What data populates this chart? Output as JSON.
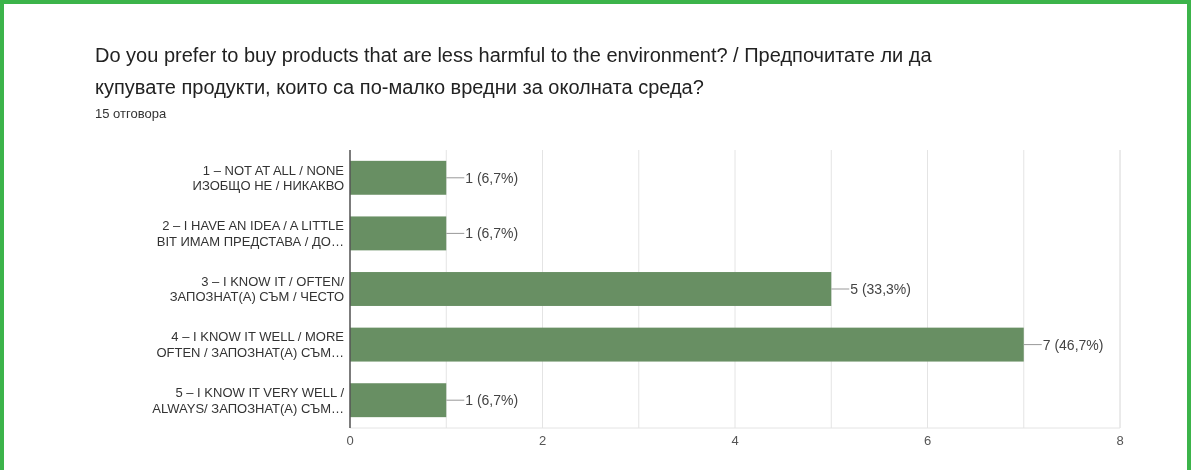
{
  "chart_data": {
    "type": "bar",
    "orientation": "horizontal",
    "title": "Do you prefer to buy products that are less harmful to the environment? / Предпочитате ли да купувате продукти, които са по-малко вредни за околната среда?",
    "subtitle": "15 отговора",
    "categories": [
      "1 – NOT AT ALL / NONE\nИЗОБЩО НЕ / НИКАКВО",
      "2 – I HAVE AN IDEA / A LITTLE\nBIT ИМАМ ПРЕДСТАВА / ДО…",
      "3 – I KNOW IT / OFTEN/\nЗАПОЗНАТ(А) СЪМ / ЧЕСТО",
      "4 – I KNOW IT WELL / MORE\nOFTEN / ЗАПОЗНАТ(А) СЪМ…",
      "5 – I KNOW IT VERY WELL /\nALWAYS/ ЗАПОЗНАТ(А) СЪМ…"
    ],
    "values": [
      1,
      1,
      5,
      7,
      1
    ],
    "value_labels": [
      "1 (6,7%)",
      "1 (6,7%)",
      "5 (33,3%)",
      "7 (46,7%)",
      "1 (6,7%)"
    ],
    "color": "#688f63",
    "xlim": [
      0,
      8
    ],
    "xticks": [
      0,
      {
        "value": 1,
        "label": null
      },
      2,
      {
        "value": 3,
        "label": null
      },
      4,
      {
        "value": 5,
        "label": null
      },
      6,
      {
        "value": 7,
        "label": null
      },
      8
    ],
    "grid": "x"
  }
}
